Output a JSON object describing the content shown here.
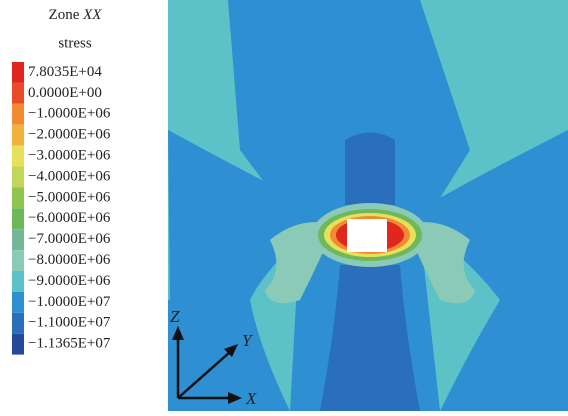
{
  "legend": {
    "title": {
      "prefix": "Zone ",
      "italic": "XX",
      "line2": "stress"
    },
    "items": [
      {
        "label": "7.8035E+04",
        "color": "#e0261e"
      },
      {
        "label": "0.0000E+00",
        "color": "#ea4a28"
      },
      {
        "label": "−1.0000E+06",
        "color": "#f18a32"
      },
      {
        "label": "−2.0000E+06",
        "color": "#f2b33e"
      },
      {
        "label": "−3.0000E+06",
        "color": "#e6e05a"
      },
      {
        "label": "−4.0000E+06",
        "color": "#c2d65a"
      },
      {
        "label": "−5.0000E+06",
        "color": "#8fc44e"
      },
      {
        "label": "−6.0000E+06",
        "color": "#6fb85a"
      },
      {
        "label": "−7.0000E+06",
        "color": "#72b898"
      },
      {
        "label": "−8.0000E+06",
        "color": "#8ccab8"
      },
      {
        "label": "−9.0000E+06",
        "color": "#5cc2c8"
      },
      {
        "label": "−1.0000E+07",
        "color": "#2e8fd2"
      },
      {
        "label": "−1.1000E+07",
        "color": "#2a6fbc"
      },
      {
        "label": "−1.1365E+07",
        "color": "#23499a"
      }
    ]
  },
  "axes": {
    "z": "Z",
    "y": "Y",
    "x": "X"
  }
}
